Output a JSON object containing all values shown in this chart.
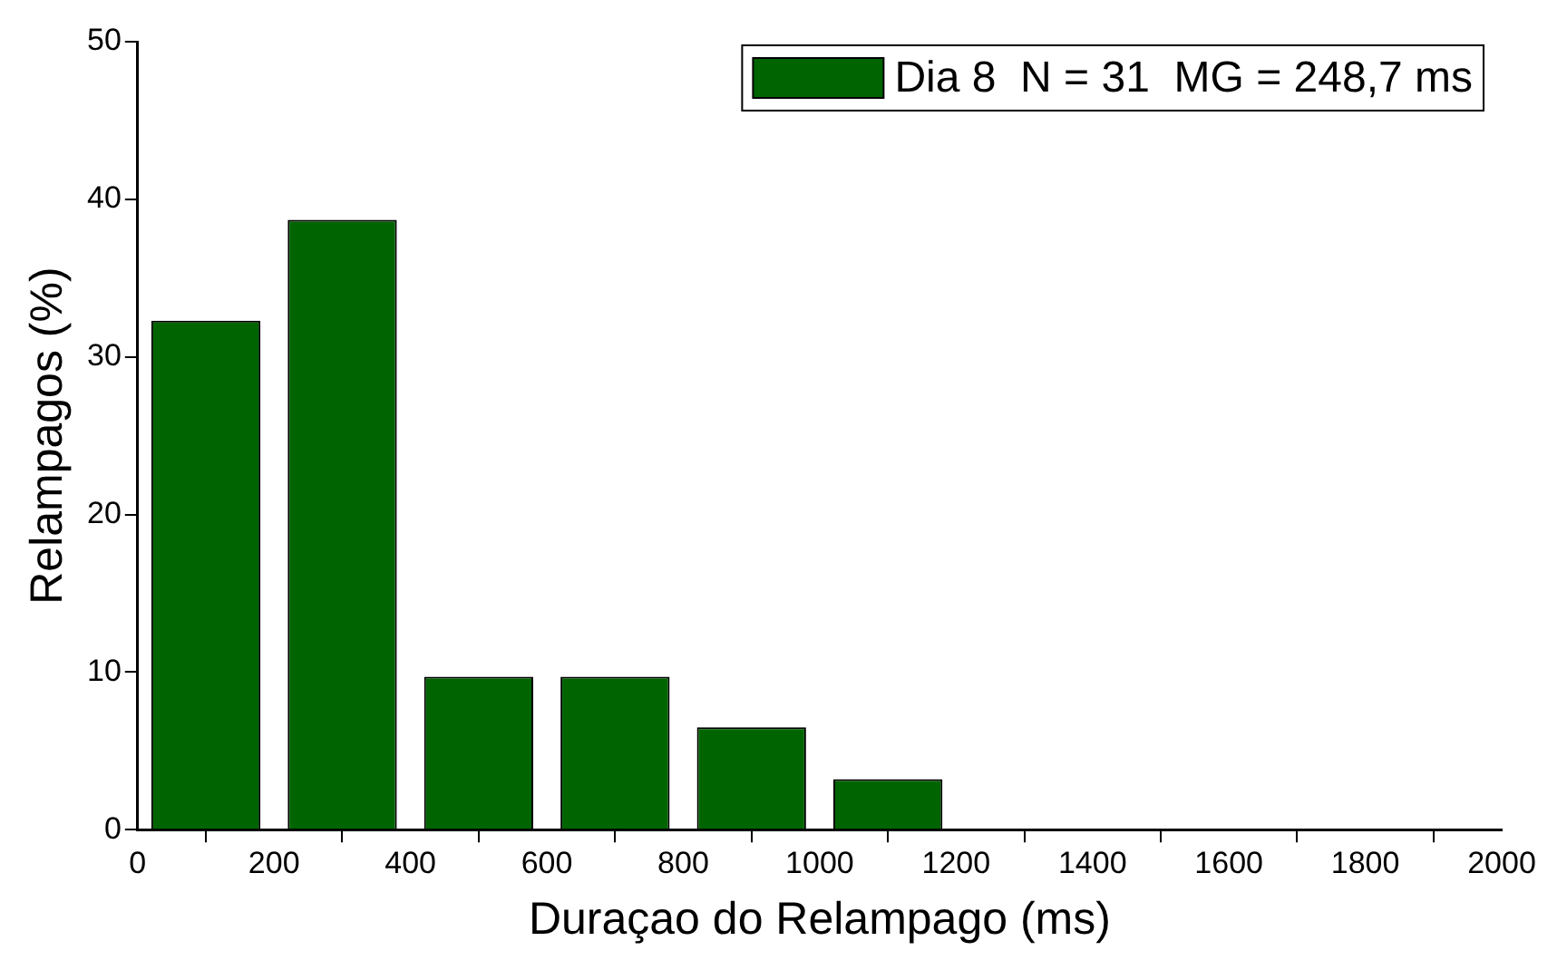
{
  "chart_data": {
    "type": "histogram",
    "xlabel": "Duraçao do Relampago (ms)",
    "ylabel": "Relampagos (%)",
    "bins": [
      0,
      200,
      400,
      600,
      800,
      1000,
      1200
    ],
    "series": [
      {
        "name": "Dia 8  N = 31  MG = 248,7 ms",
        "color": "#006400",
        "values": [
          32.3,
          38.7,
          9.7,
          9.7,
          6.5,
          3.2
        ]
      }
    ],
    "xlim": [
      0,
      2000
    ],
    "xticks": [
      0,
      200,
      400,
      600,
      800,
      1000,
      1200,
      1400,
      1600,
      1800,
      2000
    ],
    "ylim": [
      0,
      50
    ],
    "yticks": [
      0,
      10,
      20,
      30,
      40,
      50
    ],
    "grid": false,
    "legend": "top right"
  }
}
